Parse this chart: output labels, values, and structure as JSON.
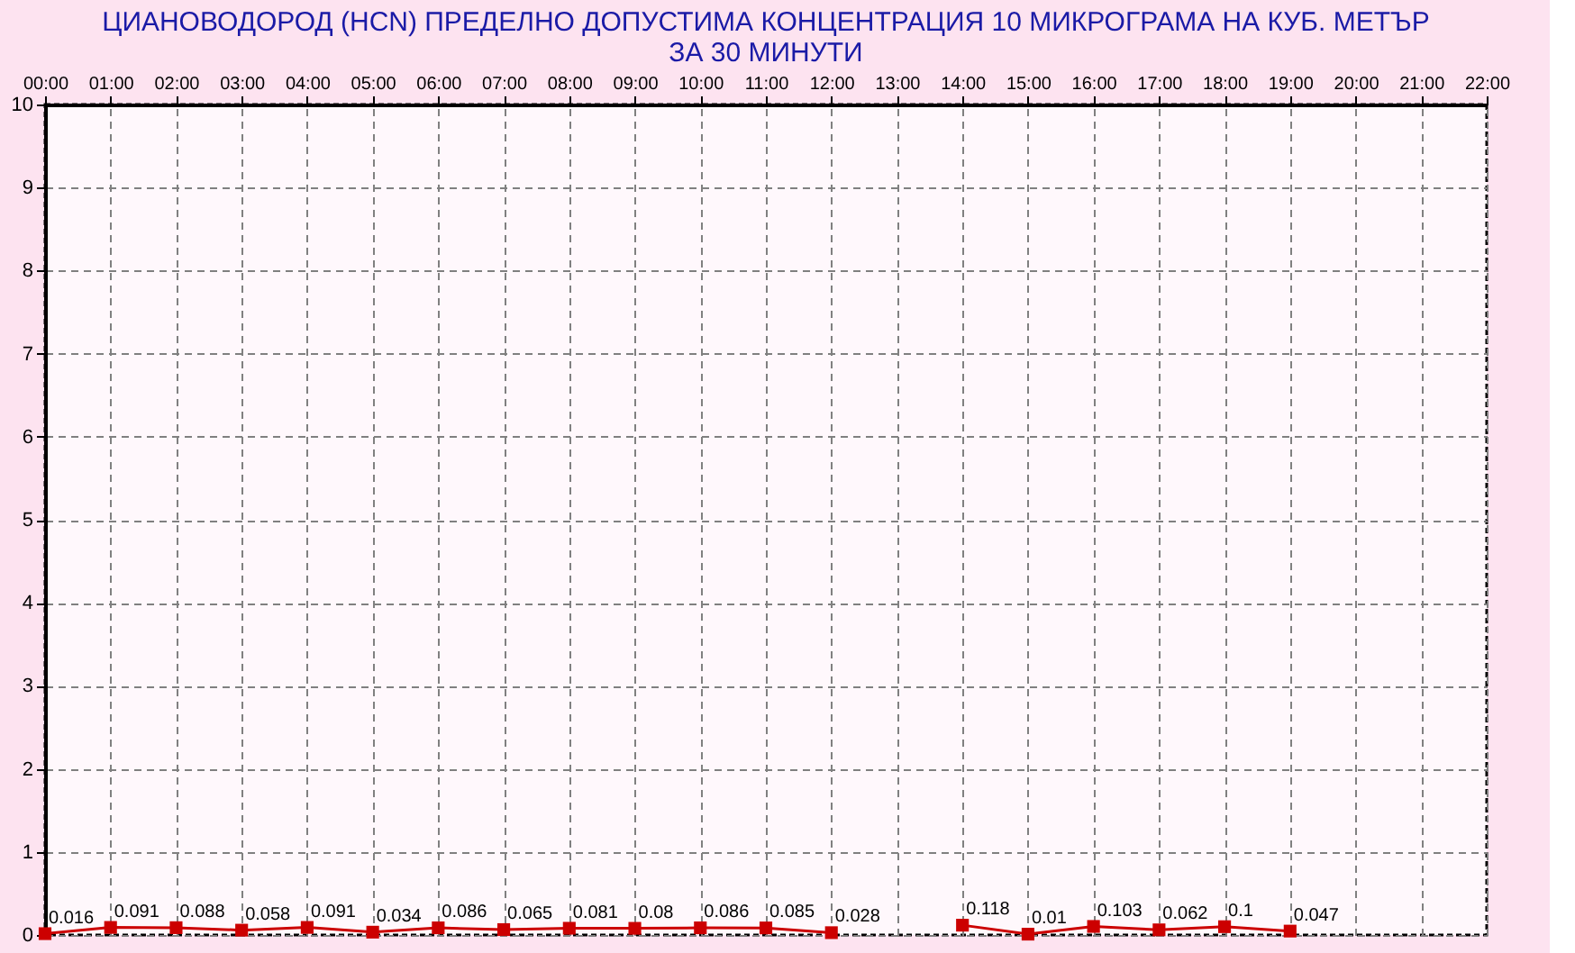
{
  "chart_data": {
    "type": "line",
    "title": "ЦИАНОВОДОРОД     (HCN)    ПРЕДЕЛНО ДОПУСТИМА КОНЦЕНТРАЦИЯ 10 МИКРОГРАМА  НА КУБ. МЕТЪР\nЗА 30 МИНУТИ",
    "x": [
      0,
      1,
      2,
      3,
      4,
      5,
      6,
      7,
      8,
      9,
      10,
      11,
      12,
      13,
      14,
      15,
      16,
      17,
      18,
      19
    ],
    "series": [
      {
        "color": "#cc0000",
        "values": [
          0.016,
          0.091,
          0.088,
          0.058,
          0.091,
          0.034,
          0.086,
          0.065,
          0.081,
          0.08,
          0.086,
          0.085,
          0.028,
          null,
          0.118,
          0.01,
          0.103,
          0.062,
          0.1,
          0.047
        ]
      }
    ],
    "xlim": [
      0,
      22
    ],
    "xticks": [
      {
        "value": 0,
        "label": "00:00"
      },
      {
        "value": 1,
        "label": "01:00"
      },
      {
        "value": 2,
        "label": "02:00"
      },
      {
        "value": 3,
        "label": "03:00"
      },
      {
        "value": 4,
        "label": "04:00"
      },
      {
        "value": 5,
        "label": "05:00"
      },
      {
        "value": 6,
        "label": "06:00"
      },
      {
        "value": 7,
        "label": "07:00"
      },
      {
        "value": 8,
        "label": "08:00"
      },
      {
        "value": 9,
        "label": "09:00"
      },
      {
        "value": 10,
        "label": "10:00"
      },
      {
        "value": 11,
        "label": "11:00"
      },
      {
        "value": 12,
        "label": "12:00"
      },
      {
        "value": 13,
        "label": "13:00"
      },
      {
        "value": 14,
        "label": "14:00"
      },
      {
        "value": 15,
        "label": "15:00"
      },
      {
        "value": 16,
        "label": "16:00"
      },
      {
        "value": 17,
        "label": "17:00"
      },
      {
        "value": 18,
        "label": "18:00"
      },
      {
        "value": 19,
        "label": "19:00"
      },
      {
        "value": 20,
        "label": "20:00"
      },
      {
        "value": 21,
        "label": "21:00"
      },
      {
        "value": 22,
        "label": "22:00"
      }
    ],
    "ylim": [
      0,
      10
    ],
    "yticks": [
      0,
      1,
      2,
      3,
      4,
      5,
      6,
      7,
      8,
      9,
      10
    ],
    "grid": true,
    "marker": "square",
    "data_labels": true
  }
}
